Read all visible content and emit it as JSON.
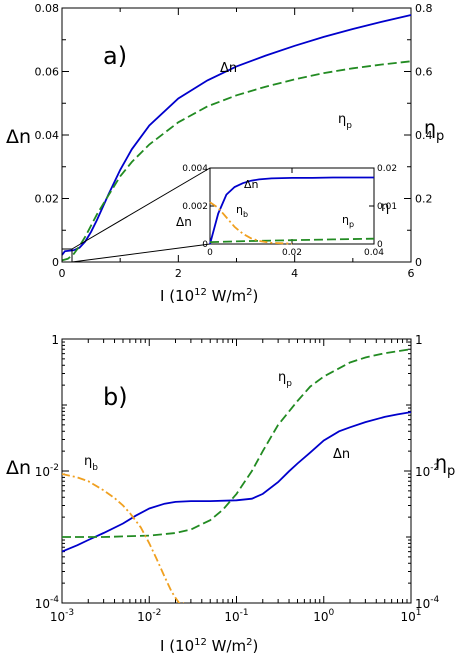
{
  "chart_data": [
    {
      "type": "line",
      "panel_label": "a)",
      "xlabel": "I (10",
      "xlabel_exp": "12",
      "xlabel_tail": " W/m",
      "xlabel_exp2": "2",
      "xlabel_end": ")",
      "ylabel_left": "Δn",
      "ylabel_right_main": "η",
      "ylabel_right_sub": "p",
      "xlim": [
        0,
        6
      ],
      "ylim_left": [
        0,
        0.08
      ],
      "ylim_right": [
        0,
        0.8
      ],
      "x_ticks": [
        "0",
        "2",
        "4",
        "6"
      ],
      "y_ticks_left": [
        "0",
        "0.02",
        "0.04",
        "0.06",
        "0.08"
      ],
      "y_ticks_right": [
        "0",
        "0.2",
        "0.4",
        "0.6",
        "0.8"
      ],
      "series": [
        {
          "name": "Δn",
          "axis": "left",
          "color": "#0000cc",
          "style": "solid",
          "x": [
            0,
            0.05,
            0.1,
            0.2,
            0.3,
            0.4,
            0.5,
            0.6,
            0.8,
            1.0,
            1.2,
            1.5,
            2.0,
            2.5,
            3.0,
            3.5,
            4.0,
            4.5,
            5.0,
            5.5,
            6.0
          ],
          "y": [
            0.0022,
            0.0034,
            0.0035,
            0.0037,
            0.0045,
            0.0065,
            0.0095,
            0.0132,
            0.0213,
            0.029,
            0.0355,
            0.043,
            0.0515,
            0.0572,
            0.0616,
            0.065,
            0.0681,
            0.0709,
            0.0734,
            0.0757,
            0.0778
          ]
        },
        {
          "name_main": "η",
          "name_sub": "p",
          "axis": "right",
          "color": "#228b22",
          "style": "dashed",
          "x": [
            0,
            0.1,
            0.2,
            0.3,
            0.4,
            0.5,
            0.6,
            0.8,
            1.0,
            1.2,
            1.5,
            2.0,
            2.5,
            3.0,
            3.5,
            4.0,
            4.5,
            5.0,
            5.5,
            6.0
          ],
          "y": [
            0.005,
            0.01,
            0.025,
            0.05,
            0.08,
            0.115,
            0.15,
            0.21,
            0.27,
            0.315,
            0.37,
            0.44,
            0.49,
            0.525,
            0.552,
            0.575,
            0.595,
            0.61,
            0.622,
            0.632
          ]
        }
      ],
      "labels": {
        "dn": "Δn",
        "eta_main": "η",
        "eta_sub": "p"
      },
      "inset": {
        "xlim": [
          0,
          0.04
        ],
        "ylim_left": [
          0,
          0.004
        ],
        "ylim_right": [
          0,
          0.02
        ],
        "x_ticks": [
          "0",
          "0.02",
          "0.04"
        ],
        "y_ticks_left": [
          "0",
          "0.002",
          "0.004"
        ],
        "y_ticks_right": [
          "0",
          "0.01",
          "0.02"
        ],
        "ylabel_left": "Δn",
        "ylabel_right": "η",
        "series": [
          {
            "name": "Δn",
            "axis": "left",
            "color": "#0000cc",
            "style": "solid",
            "x": [
              0,
              0.001,
              0.002,
              0.004,
              0.006,
              0.008,
              0.01,
              0.012,
              0.015,
              0.02,
              0.025,
              0.03,
              0.04
            ],
            "y": [
              0,
              0.0008,
              0.0016,
              0.0026,
              0.003,
              0.0032,
              0.00333,
              0.0034,
              0.00345,
              0.00348,
              0.00348,
              0.0035,
              0.0035
            ]
          },
          {
            "name_main": "η",
            "name_sub": "p",
            "axis": "right",
            "color": "#228b22",
            "style": "dashed",
            "x": [
              0,
              0.01,
              0.02,
              0.03,
              0.04
            ],
            "y": [
              0.0005,
              0.0008,
              0.001,
              0.0012,
              0.0014
            ]
          },
          {
            "name_main": "η",
            "name_sub": "b",
            "axis": "right",
            "color": "#f0a020",
            "style": "dashdot",
            "x": [
              0,
              0.002,
              0.004,
              0.006,
              0.008,
              0.01,
              0.012,
              0.015,
              0.02
            ],
            "y": [
              0.011,
              0.0095,
              0.007,
              0.0045,
              0.0027,
              0.0015,
              0.0008,
              0.0003,
              0.0001
            ]
          }
        ],
        "labels": {
          "dn": "Δn",
          "etab_main": "η",
          "etab_sub": "b",
          "etap_main": "η",
          "etap_sub": "p"
        }
      }
    },
    {
      "type": "line",
      "panel_label": "b)",
      "scale": "log-log",
      "xlabel": "I (10",
      "xlabel_exp": "12",
      "xlabel_tail": " W/m",
      "xlabel_exp2": "2",
      "xlabel_end": ")",
      "ylabel_left": "Δn",
      "ylabel_right_main": "η",
      "ylabel_right_sub": "p",
      "xlim": [
        0.001,
        10
      ],
      "ylim": [
        0.0001,
        1
      ],
      "x_ticks": [
        {
          "base": "10",
          "exp": "-3"
        },
        {
          "base": "10",
          "exp": "-2"
        },
        {
          "base": "10",
          "exp": "-1"
        },
        {
          "base": "10",
          "exp": "0"
        },
        {
          "base": "10",
          "exp": "1"
        }
      ],
      "y_ticks_left": [
        {
          "base": "1",
          "exp": ""
        },
        {
          "base": "10",
          "exp": "-2"
        },
        {
          "base": "10",
          "exp": "-4"
        }
      ],
      "y_ticks_right": [
        {
          "base": "1",
          "exp": ""
        },
        {
          "base": "10",
          "exp": "-2"
        },
        {
          "base": "10",
          "exp": "-4"
        }
      ],
      "series": [
        {
          "name": "Δn",
          "color": "#0000cc",
          "style": "solid",
          "x": [
            0.001,
            0.0015,
            0.002,
            0.003,
            0.005,
            0.007,
            0.01,
            0.015,
            0.02,
            0.03,
            0.05,
            0.1,
            0.15,
            0.2,
            0.3,
            0.4,
            0.5,
            0.7,
            1.0,
            1.5,
            2,
            3,
            5,
            7,
            10
          ],
          "y": [
            0.0006,
            0.00075,
            0.0009,
            0.00115,
            0.0016,
            0.0021,
            0.0027,
            0.0032,
            0.0034,
            0.0035,
            0.0035,
            0.0036,
            0.0038,
            0.0045,
            0.0068,
            0.0099,
            0.013,
            0.019,
            0.029,
            0.04,
            0.046,
            0.055,
            0.066,
            0.072,
            0.078
          ]
        },
        {
          "name_main": "η",
          "name_sub": "p",
          "color": "#228b22",
          "style": "dashed",
          "x": [
            0.001,
            0.003,
            0.01,
            0.02,
            0.03,
            0.05,
            0.07,
            0.1,
            0.15,
            0.2,
            0.3,
            0.5,
            0.7,
            1.0,
            2,
            3,
            5,
            10
          ],
          "y": [
            0.001,
            0.001,
            0.00105,
            0.00115,
            0.0013,
            0.0018,
            0.0026,
            0.0045,
            0.01,
            0.02,
            0.05,
            0.115,
            0.19,
            0.27,
            0.44,
            0.525,
            0.61,
            0.7
          ]
        },
        {
          "name_main": "η",
          "name_sub": "b",
          "color": "#f0a020",
          "style": "dashdot",
          "x": [
            0.001,
            0.0015,
            0.002,
            0.003,
            0.004,
            0.005,
            0.006,
            0.008,
            0.01,
            0.012,
            0.015,
            0.018,
            0.02,
            0.022,
            0.025
          ],
          "y": [
            0.009,
            0.008,
            0.007,
            0.0051,
            0.0039,
            0.003,
            0.0023,
            0.0014,
            0.0008,
            0.00048,
            0.00025,
            0.00015,
            0.00012,
            0.0001,
            0.0001
          ]
        }
      ],
      "labels": {
        "dn": "Δn",
        "etab_main": "η",
        "etab_sub": "b",
        "etap_main": "η",
        "etap_sub": "p"
      }
    }
  ]
}
